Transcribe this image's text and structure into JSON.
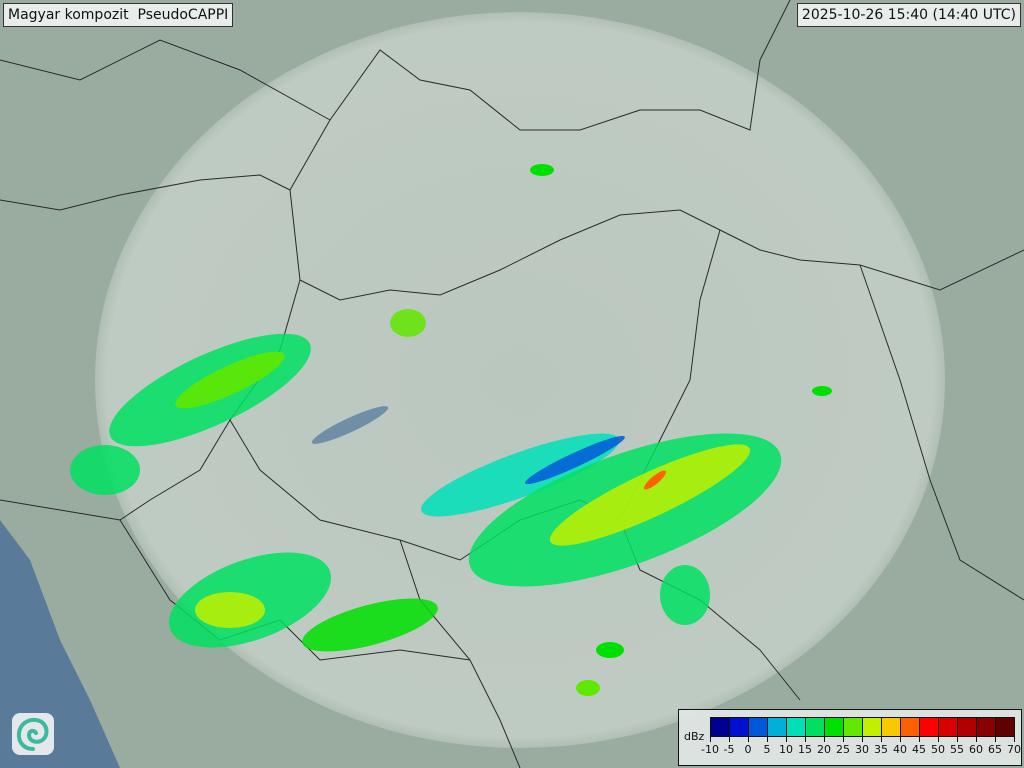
{
  "header": {
    "title": "Magyar kompozit  PseudoCAPPI",
    "timestamp": "2025-10-26 15:40 (14:40 UTC)"
  },
  "map": {
    "background_color": "#9aab9f",
    "coverage_color": "#c9d4cc",
    "border_color": "#2a2a2a",
    "water_color": "#5a7a9a",
    "logo_icon": "swirl-logo-icon"
  },
  "legend": {
    "unit": "dBz",
    "ticks": [
      "-10",
      "-5",
      "0",
      "5",
      "10",
      "15",
      "20",
      "25",
      "30",
      "35",
      "40",
      "45",
      "50",
      "55",
      "60",
      "65",
      "70"
    ],
    "colors": [
      "#000090",
      "#0010d0",
      "#0058d8",
      "#00b0d8",
      "#00e0b8",
      "#00e060",
      "#00e000",
      "#60e800",
      "#c0f000",
      "#f8c800",
      "#ff6000",
      "#ff0000",
      "#d80000",
      "#b00000",
      "#880000",
      "#600000"
    ]
  }
}
